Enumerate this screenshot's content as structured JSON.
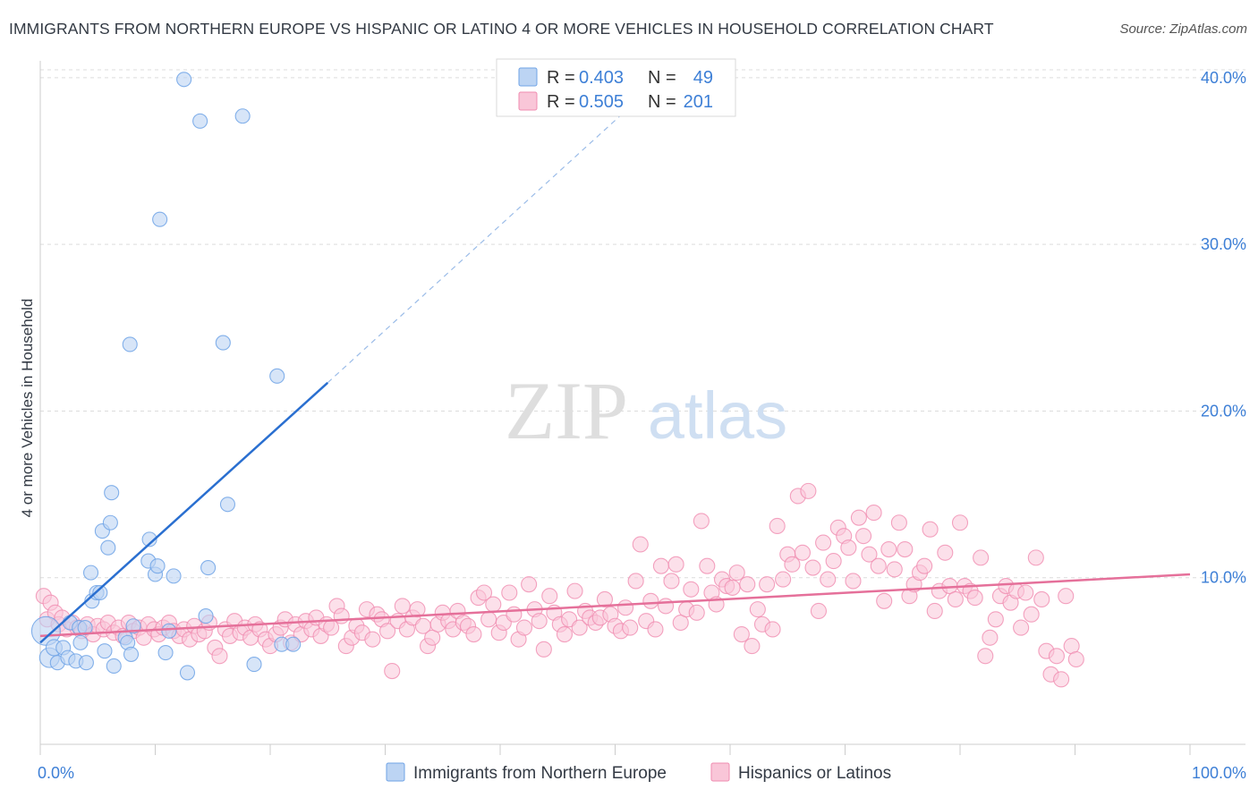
{
  "title": "IMMIGRANTS FROM NORTHERN EUROPE VS HISPANIC OR LATINO 4 OR MORE VEHICLES IN HOUSEHOLD CORRELATION CHART",
  "source": "Source: ZipAtlas.com",
  "watermark": {
    "zip": "ZIP",
    "atlas": "atlas"
  },
  "colors": {
    "blue": "#6fa3e6",
    "blue_fill": "#bcd4f3",
    "blue_line": "#2a6fd0",
    "pink": "#f08cb0",
    "pink_fill": "#f9c6d8",
    "pink_line": "#e5709a",
    "tick": "#3d7fd6"
  },
  "legend": {
    "rows": [
      {
        "r_label": "R = ",
        "r_value": "0.403",
        "n_label": "N = ",
        "n_value": " 49",
        "color": "#6fa3e6",
        "fill": "#bcd4f3"
      },
      {
        "r_label": "R = ",
        "r_value": "0.505",
        "n_label": "N = ",
        "n_value": "201",
        "color": "#f08cb0",
        "fill": "#f9c6d8"
      }
    ]
  },
  "bottom_legend": [
    {
      "label": "Immigrants from Northern Europe",
      "color": "#6fa3e6",
      "fill": "#bcd4f3"
    },
    {
      "label": "Hispanics or Latinos",
      "color": "#f08cb0",
      "fill": "#f9c6d8"
    }
  ],
  "chart_data": {
    "type": "scatter",
    "title": "IMMIGRANTS FROM NORTHERN EUROPE VS HISPANIC OR LATINO 4 OR MORE VEHICLES IN HOUSEHOLD CORRELATION CHART",
    "xlabel": "",
    "ylabel": "4 or more Vehicles in Household",
    "xlim": [
      0,
      100
    ],
    "ylim": [
      0,
      40.8
    ],
    "x_ticks": [
      "0.0%",
      "100.0%"
    ],
    "y_ticks": [
      {
        "value": 10,
        "label": "10.0%"
      },
      {
        "value": 20,
        "label": "20.0%"
      },
      {
        "value": 30,
        "label": "30.0%"
      },
      {
        "value": 40,
        "label": "40.0%"
      }
    ],
    "grid": true,
    "legend_position": "top-center",
    "series": [
      {
        "name": "Immigrants from Northern Europe",
        "r": 0.403,
        "n": 49,
        "trend": {
          "x": [
            0,
            25
          ],
          "y": [
            6.1,
            21.7
          ]
        },
        "trend_dashed": {
          "x": [
            25,
            52
          ],
          "y": [
            21.7,
            38.7
          ]
        },
        "points": [
          [
            0.5,
            6.8,
            16
          ],
          [
            0.8,
            5.2,
            11
          ],
          [
            1.2,
            5.8,
            9
          ],
          [
            1.5,
            4.9,
            8
          ],
          [
            2.0,
            5.8,
            8
          ],
          [
            2.4,
            5.2,
            8
          ],
          [
            2.6,
            7.3,
            8
          ],
          [
            3.1,
            5.0,
            8
          ],
          [
            3.4,
            7.0,
            8
          ],
          [
            3.5,
            6.1,
            8
          ],
          [
            3.9,
            7.0,
            8
          ],
          [
            4.0,
            4.9,
            8
          ],
          [
            4.4,
            10.3,
            8
          ],
          [
            4.5,
            8.6,
            8
          ],
          [
            4.9,
            9.1,
            8
          ],
          [
            5.2,
            9.1,
            8
          ],
          [
            5.4,
            12.8,
            8
          ],
          [
            5.6,
            5.6,
            8
          ],
          [
            5.9,
            11.8,
            8
          ],
          [
            6.1,
            13.3,
            8
          ],
          [
            6.2,
            15.1,
            8
          ],
          [
            6.4,
            4.7,
            8
          ],
          [
            7.4,
            6.4,
            8
          ],
          [
            7.6,
            6.1,
            8
          ],
          [
            7.8,
            24.0,
            8
          ],
          [
            7.9,
            5.4,
            8
          ],
          [
            8.1,
            7.1,
            8
          ],
          [
            9.4,
            11.0,
            8
          ],
          [
            9.5,
            12.3,
            8
          ],
          [
            10.0,
            10.2,
            8
          ],
          [
            10.2,
            10.7,
            8
          ],
          [
            10.4,
            31.5,
            8
          ],
          [
            10.9,
            5.5,
            8
          ],
          [
            11.2,
            6.8,
            8
          ],
          [
            11.6,
            10.1,
            8
          ],
          [
            12.5,
            39.9,
            8
          ],
          [
            12.8,
            4.3,
            8
          ],
          [
            13.9,
            37.4,
            8
          ],
          [
            14.4,
            7.7,
            8
          ],
          [
            14.6,
            10.6,
            8
          ],
          [
            15.9,
            24.1,
            8
          ],
          [
            16.3,
            14.4,
            8
          ],
          [
            17.6,
            37.7,
            8
          ],
          [
            18.6,
            4.8,
            8
          ],
          [
            20.6,
            22.1,
            8
          ],
          [
            21.0,
            6.0,
            8
          ],
          [
            22.0,
            6.0,
            8
          ]
        ]
      },
      {
        "name": "Hispanics or Latinos",
        "r": 0.505,
        "n": 201,
        "trend": {
          "x": [
            0,
            100
          ],
          "y": [
            6.5,
            10.2
          ]
        },
        "points": [
          [
            0.3,
            8.9
          ],
          [
            0.6,
            7.5
          ],
          [
            0.9,
            8.5
          ],
          [
            1.3,
            7.9
          ],
          [
            1.6,
            7.2
          ],
          [
            1.9,
            7.6
          ],
          [
            2.3,
            6.9
          ],
          [
            2.8,
            7.3
          ],
          [
            3.2,
            7.0
          ],
          [
            3.6,
            6.8
          ],
          [
            4.1,
            7.2
          ],
          [
            4.6,
            6.6
          ],
          [
            5.0,
            7.1
          ],
          [
            5.5,
            6.9
          ],
          [
            5.9,
            7.3
          ],
          [
            6.4,
            6.7
          ],
          [
            6.8,
            7.0
          ],
          [
            7.2,
            6.5
          ],
          [
            7.7,
            7.3
          ],
          [
            8.1,
            6.8
          ],
          [
            8.6,
            7.0
          ],
          [
            9.0,
            6.4
          ],
          [
            9.4,
            7.2
          ],
          [
            9.9,
            6.9
          ],
          [
            10.3,
            6.6
          ],
          [
            10.7,
            7.0
          ],
          [
            11.2,
            7.3
          ],
          [
            11.6,
            6.8
          ],
          [
            12.1,
            6.5
          ],
          [
            12.5,
            6.9
          ],
          [
            13.0,
            6.3
          ],
          [
            13.4,
            7.1
          ],
          [
            13.8,
            6.6
          ],
          [
            14.3,
            6.8
          ],
          [
            14.7,
            7.3
          ],
          [
            15.2,
            5.8
          ],
          [
            15.6,
            5.3
          ],
          [
            16.1,
            6.9
          ],
          [
            16.5,
            6.5
          ],
          [
            16.9,
            7.4
          ],
          [
            17.4,
            6.7
          ],
          [
            17.8,
            7.0
          ],
          [
            18.3,
            6.4
          ],
          [
            18.7,
            7.2
          ],
          [
            19.1,
            6.9
          ],
          [
            19.6,
            6.3
          ],
          [
            20.0,
            5.9
          ],
          [
            20.5,
            6.6
          ],
          [
            20.9,
            7.0
          ],
          [
            21.3,
            7.5
          ],
          [
            21.8,
            6.1
          ],
          [
            22.2,
            7.2
          ],
          [
            22.7,
            6.6
          ],
          [
            23.1,
            7.4
          ],
          [
            23.6,
            6.9
          ],
          [
            24.0,
            7.6
          ],
          [
            24.4,
            6.5
          ],
          [
            24.9,
            7.2
          ],
          [
            25.3,
            7.0
          ],
          [
            25.8,
            8.3
          ],
          [
            26.2,
            7.7
          ],
          [
            26.6,
            5.9
          ],
          [
            27.1,
            6.4
          ],
          [
            27.5,
            7.1
          ],
          [
            28.0,
            6.7
          ],
          [
            28.4,
            8.1
          ],
          [
            28.9,
            6.3
          ],
          [
            29.3,
            7.8
          ],
          [
            29.7,
            7.5
          ],
          [
            30.2,
            6.8
          ],
          [
            30.6,
            4.4
          ],
          [
            31.1,
            7.4
          ],
          [
            31.5,
            8.3
          ],
          [
            31.9,
            6.9
          ],
          [
            32.4,
            7.6
          ],
          [
            32.8,
            8.1
          ],
          [
            33.3,
            7.1
          ],
          [
            33.7,
            5.9
          ],
          [
            34.1,
            6.4
          ],
          [
            34.6,
            7.2
          ],
          [
            35.0,
            7.9
          ],
          [
            35.5,
            7.4
          ],
          [
            35.9,
            6.9
          ],
          [
            36.3,
            8.0
          ],
          [
            36.8,
            7.3
          ],
          [
            37.2,
            7.1
          ],
          [
            37.7,
            6.6
          ],
          [
            38.1,
            8.8
          ],
          [
            38.6,
            9.1
          ],
          [
            39.0,
            7.5
          ],
          [
            39.4,
            8.4
          ],
          [
            39.9,
            6.7
          ],
          [
            40.3,
            7.3
          ],
          [
            40.8,
            9.1
          ],
          [
            41.2,
            7.8
          ],
          [
            41.6,
            6.3
          ],
          [
            42.1,
            7.0
          ],
          [
            42.5,
            9.6
          ],
          [
            43.0,
            8.1
          ],
          [
            43.4,
            7.4
          ],
          [
            43.8,
            5.7
          ],
          [
            44.3,
            8.9
          ],
          [
            44.7,
            7.9
          ],
          [
            45.2,
            7.2
          ],
          [
            45.6,
            6.6
          ],
          [
            46.0,
            7.5
          ],
          [
            46.5,
            9.2
          ],
          [
            46.9,
            7.0
          ],
          [
            47.4,
            8.0
          ],
          [
            47.8,
            7.6
          ],
          [
            48.3,
            7.3
          ],
          [
            48.7,
            7.6
          ],
          [
            49.1,
            8.7
          ],
          [
            49.6,
            7.8
          ],
          [
            50.0,
            7.1
          ],
          [
            50.5,
            6.8
          ],
          [
            50.9,
            8.2
          ],
          [
            51.3,
            7.0
          ],
          [
            51.8,
            9.8
          ],
          [
            52.2,
            12.0
          ],
          [
            52.7,
            7.4
          ],
          [
            53.1,
            8.6
          ],
          [
            53.5,
            6.9
          ],
          [
            54.0,
            10.7
          ],
          [
            54.4,
            8.3
          ],
          [
            54.9,
            9.8
          ],
          [
            55.3,
            10.8
          ],
          [
            55.7,
            7.3
          ],
          [
            56.2,
            8.1
          ],
          [
            56.6,
            9.3
          ],
          [
            57.1,
            7.9
          ],
          [
            57.5,
            13.4
          ],
          [
            58.0,
            10.7
          ],
          [
            58.4,
            9.1
          ],
          [
            58.8,
            8.4
          ],
          [
            59.3,
            9.9
          ],
          [
            59.7,
            9.5
          ],
          [
            60.2,
            9.4
          ],
          [
            60.6,
            10.3
          ],
          [
            61.0,
            6.6
          ],
          [
            61.5,
            9.6
          ],
          [
            61.9,
            5.9
          ],
          [
            62.4,
            8.1
          ],
          [
            62.8,
            7.2
          ],
          [
            63.2,
            9.6
          ],
          [
            63.7,
            6.9
          ],
          [
            64.1,
            13.1
          ],
          [
            64.6,
            9.9
          ],
          [
            65.0,
            11.4
          ],
          [
            65.4,
            10.8
          ],
          [
            65.9,
            14.9
          ],
          [
            66.3,
            11.5
          ],
          [
            66.8,
            15.2
          ],
          [
            67.2,
            10.6
          ],
          [
            67.7,
            8.0
          ],
          [
            68.1,
            12.1
          ],
          [
            68.5,
            9.9
          ],
          [
            69.0,
            11.0
          ],
          [
            69.4,
            13.0
          ],
          [
            69.9,
            12.5
          ],
          [
            70.3,
            11.8
          ],
          [
            70.7,
            9.8
          ],
          [
            71.2,
            13.6
          ],
          [
            71.6,
            12.5
          ],
          [
            72.1,
            11.4
          ],
          [
            72.5,
            13.9
          ],
          [
            72.9,
            10.7
          ],
          [
            73.4,
            8.6
          ],
          [
            73.8,
            11.7
          ],
          [
            74.3,
            10.5
          ],
          [
            74.7,
            13.3
          ],
          [
            75.2,
            11.7
          ],
          [
            75.6,
            8.9
          ],
          [
            76.0,
            9.6
          ],
          [
            76.5,
            10.3
          ],
          [
            76.9,
            10.7
          ],
          [
            77.4,
            12.9
          ],
          [
            77.8,
            8.0
          ],
          [
            78.2,
            9.2
          ],
          [
            78.7,
            11.5
          ],
          [
            79.1,
            9.5
          ],
          [
            79.6,
            8.7
          ],
          [
            80.0,
            13.3
          ],
          [
            80.4,
            9.5
          ],
          [
            80.9,
            9.2
          ],
          [
            81.3,
            8.8
          ],
          [
            81.8,
            11.2
          ],
          [
            82.2,
            5.3
          ],
          [
            82.6,
            6.4
          ],
          [
            83.1,
            7.5
          ],
          [
            83.5,
            8.9
          ],
          [
            84.0,
            9.5
          ],
          [
            84.4,
            8.5
          ],
          [
            84.9,
            9.2
          ],
          [
            85.3,
            7.0
          ],
          [
            85.7,
            9.1
          ],
          [
            86.2,
            7.8
          ],
          [
            86.6,
            11.2
          ],
          [
            87.1,
            8.7
          ],
          [
            87.5,
            5.6
          ],
          [
            87.9,
            4.2
          ],
          [
            88.4,
            5.3
          ],
          [
            88.8,
            3.9
          ],
          [
            89.2,
            8.9
          ],
          [
            89.7,
            5.9
          ],
          [
            90.1,
            5.1
          ]
        ]
      }
    ]
  }
}
